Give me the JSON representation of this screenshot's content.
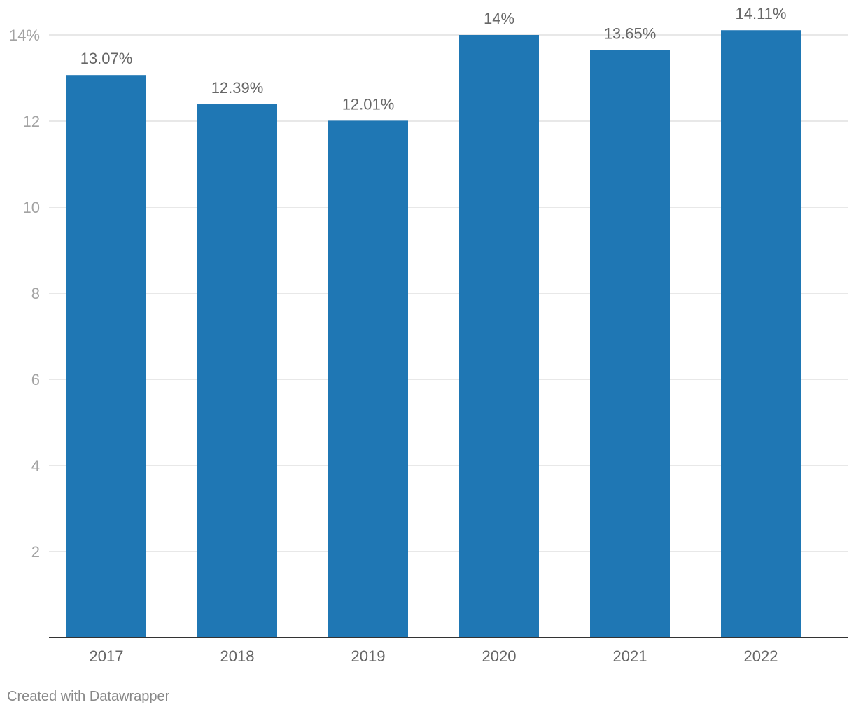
{
  "chart_data": {
    "type": "bar",
    "categories": [
      "2017",
      "2018",
      "2019",
      "2020",
      "2021",
      "2022"
    ],
    "values": [
      13.07,
      12.39,
      12.01,
      14.0,
      13.65,
      14.11
    ],
    "value_labels": [
      "13.07%",
      "12.39%",
      "12.01%",
      "14%",
      "13.65%",
      "14.11%"
    ],
    "title": "",
    "xlabel": "",
    "ylabel": "",
    "ylim": [
      0,
      14
    ],
    "yticks": [
      2,
      4,
      6,
      8,
      10,
      12,
      14
    ],
    "ytick_labels": [
      "2",
      "4",
      "6",
      "8",
      "10",
      "12",
      "14%"
    ],
    "grid": true,
    "legend": "none",
    "bar_color": "#1f77b4"
  },
  "footer": {
    "credit": "Created with Datawrapper"
  }
}
